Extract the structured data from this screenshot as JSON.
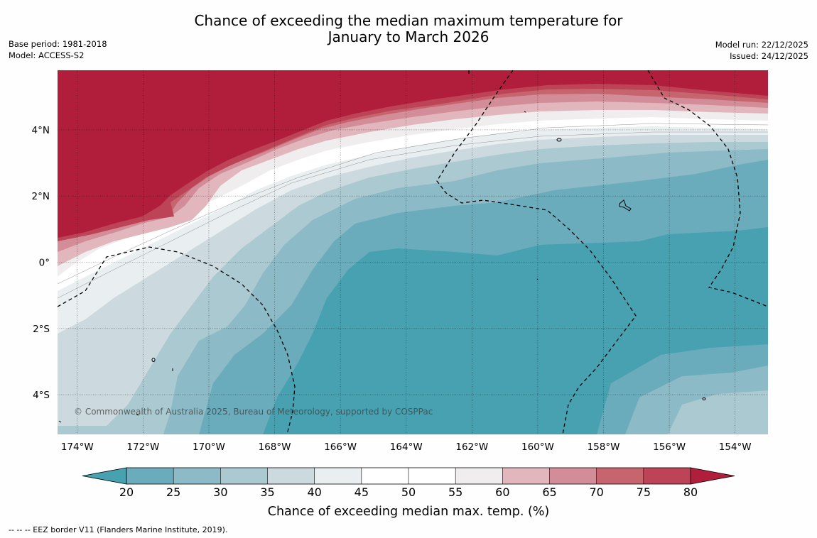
{
  "title_line1": "Chance of exceeding the median maximum temperature for",
  "title_line2": "January to March 2026",
  "base_period": "Base period: 1981-2018",
  "model": "Model: ACCESS-S2",
  "model_run": "Model run: 22/12/2025",
  "issued": "Issued: 24/12/2025",
  "copyright": "© Commonwealth of Australia 2025, Bureau of Meteorology, supported by COSPPac",
  "colorbar_label": "Chance of exceeding median max. temp. (%)",
  "footer_note": "--  --  -- EEZ border V11 (Flanders Marine Institute, 2019).",
  "map_data": {
    "type": "filled-contour-map",
    "lon_range": [
      -174.6,
      -153.0
    ],
    "lat_range": [
      -5.2,
      5.8
    ],
    "lon_ticks": [
      -174,
      -172,
      -170,
      -168,
      -166,
      -164,
      -162,
      -160,
      -158,
      -156,
      -154
    ],
    "lon_tick_labels": [
      "174°W",
      "172°W",
      "170°W",
      "168°W",
      "166°W",
      "164°W",
      "162°W",
      "160°W",
      "158°W",
      "156°W",
      "154°W"
    ],
    "lat_ticks": [
      4,
      2,
      0,
      -2,
      -4
    ],
    "lat_tick_labels": [
      "4°N",
      "2°N",
      "0°",
      "2°S",
      "4°S"
    ],
    "colorbar": {
      "levels": [
        20,
        25,
        30,
        35,
        40,
        45,
        50,
        55,
        60,
        65,
        70,
        75,
        80
      ],
      "level_labels": [
        "20",
        "25",
        "30",
        "35",
        "40",
        "45",
        "50",
        "55",
        "60",
        "65",
        "70",
        "75",
        "80"
      ],
      "under_color": "#48a1b1",
      "over_color": "#b11e3b",
      "colors": [
        "#6aacbc",
        "#8cbac6",
        "#abc9d0",
        "#ccdadf",
        "#e9eff1",
        "#ffffff",
        "#ffffff",
        "#efeded",
        "#e2b6bd",
        "#d28d98",
        "#c7656f",
        "#bd4456"
      ]
    },
    "regions": [
      {
        "name": "warm",
        "value": "80+"
      },
      {
        "name": "transition",
        "value": "40-60"
      },
      {
        "name": "cool",
        "value": "<20"
      }
    ]
  }
}
